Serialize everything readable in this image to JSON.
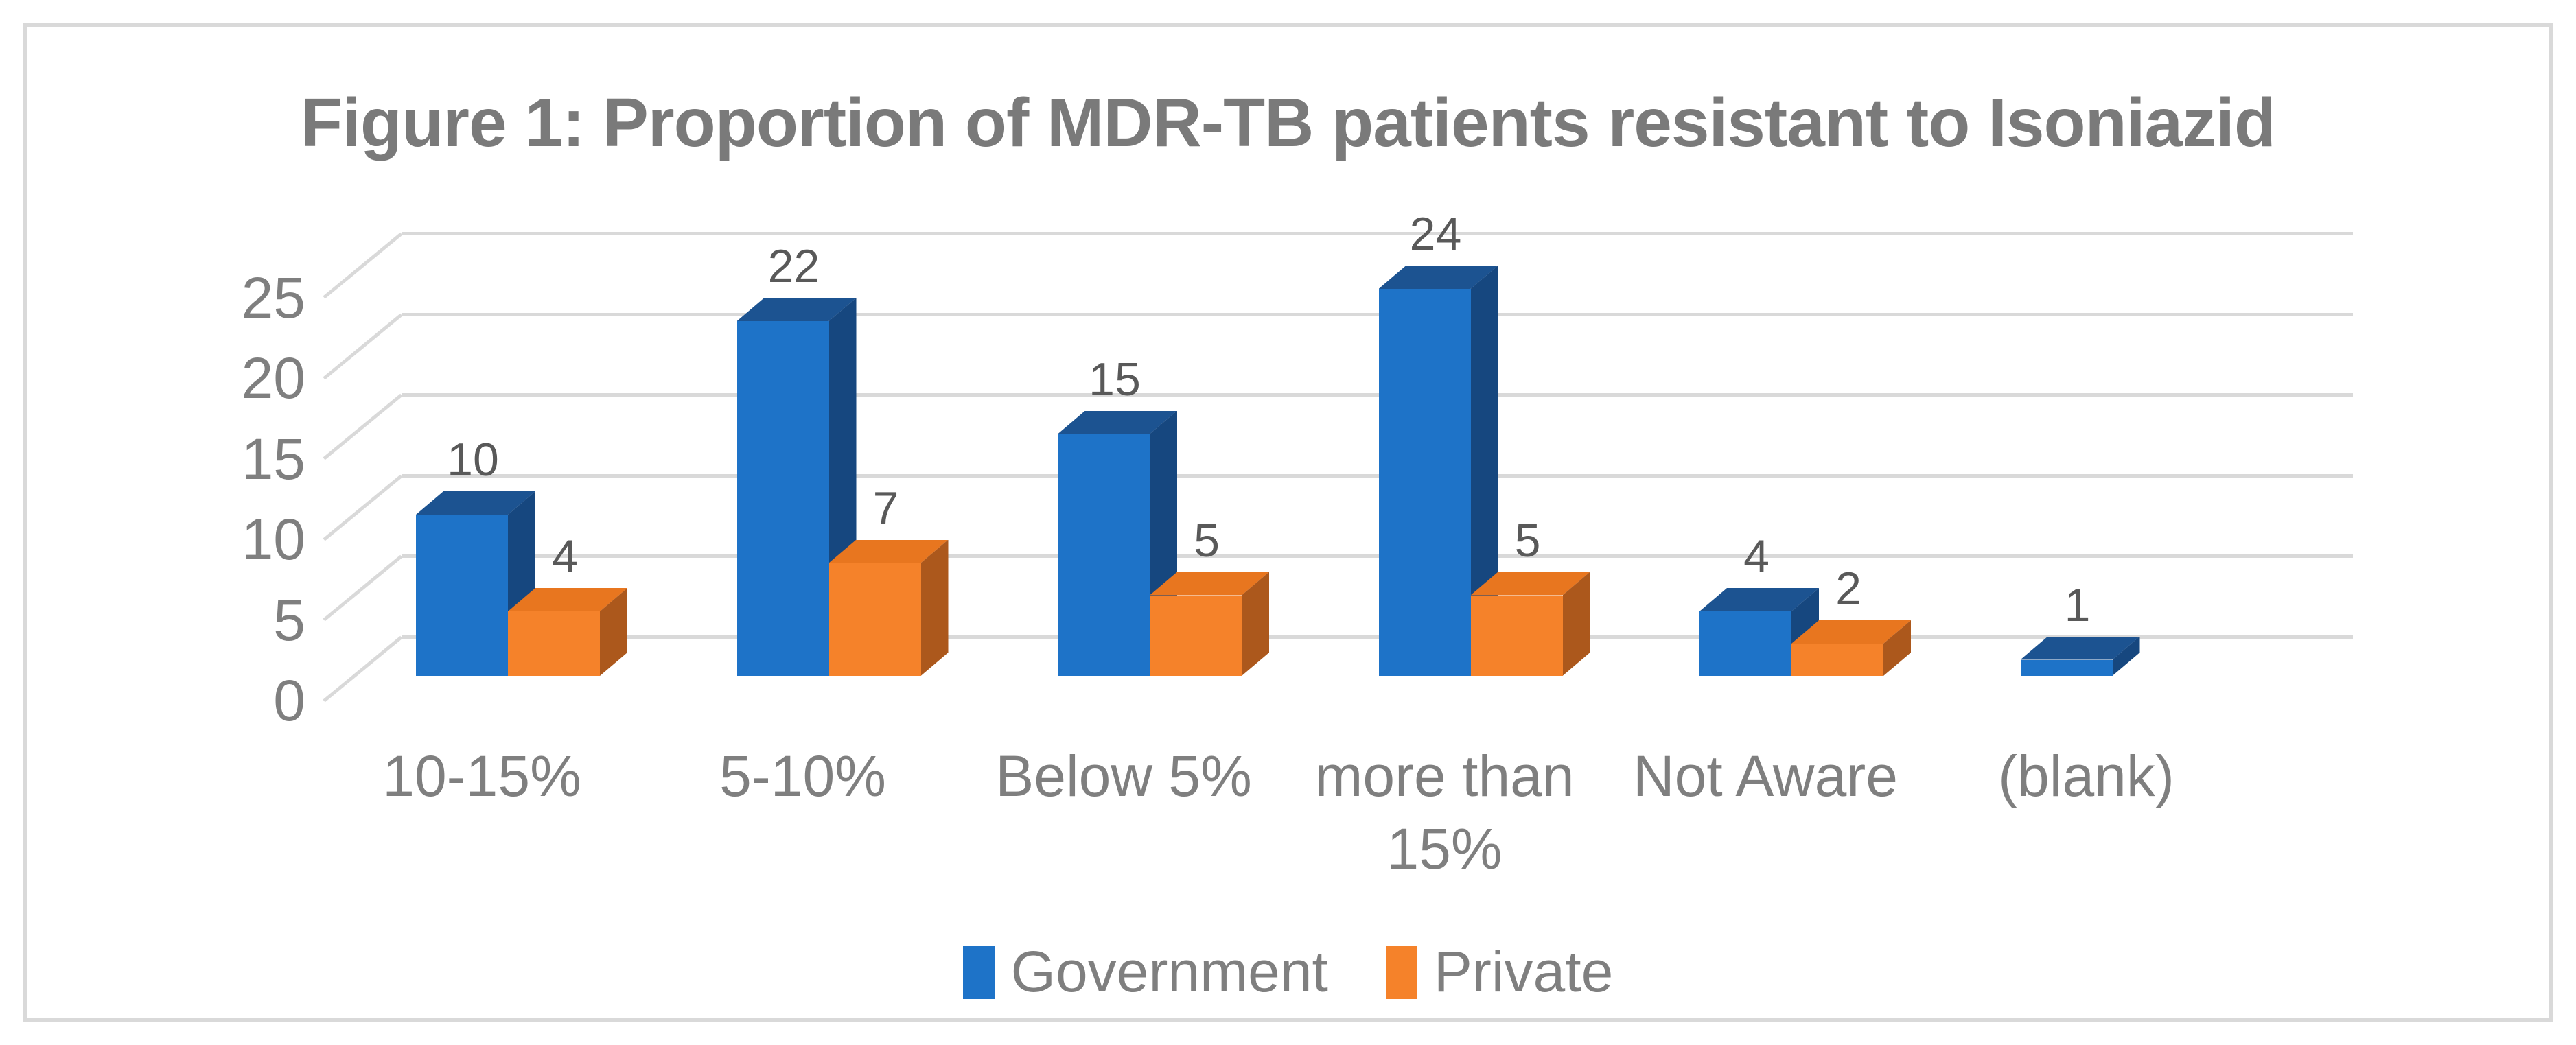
{
  "chart_data": {
    "type": "bar",
    "subtype": "3d-clustered-column",
    "title": "Figure 1: Proportion of MDR-TB patients resistant to Isoniazid",
    "xlabel": "",
    "ylabel": "",
    "categories": [
      "10-15%",
      "5-10%",
      "Below 5%",
      "more than 15%",
      "Not Aware",
      "(blank)"
    ],
    "series": [
      {
        "name": "Government",
        "values": [
          10,
          22,
          15,
          24,
          4,
          1
        ],
        "color": "#1E73C8",
        "color_top": "#1C5391",
        "color_side": "#16477F"
      },
      {
        "name": "Private",
        "values": [
          4,
          7,
          5,
          5,
          2,
          null
        ],
        "color": "#F5822A",
        "color_top": "#E8761F",
        "color_side": "#AC581C"
      }
    ],
    "data_labels": {
      "Government": [
        10,
        22,
        15,
        24,
        4,
        1
      ],
      "Private": [
        4,
        7,
        5,
        5,
        2,
        null
      ]
    },
    "y_axis": {
      "ticks": [
        0,
        5,
        10,
        15,
        20,
        25
      ],
      "min": 0,
      "max": 25
    },
    "ylim": [
      0,
      25
    ],
    "grid": true,
    "legend_position": "bottom",
    "legend_entries": [
      "Government",
      "Private"
    ]
  },
  "colors": {
    "title_text": "#7A7A7A",
    "axis_text": "#7F7F7F",
    "data_label_text": "#595959",
    "gridline": "#D9D9D9",
    "frame_border": "#D9D9D9",
    "background": "#FFFFFF",
    "series_government": "#1E73C8",
    "series_private": "#F5822A"
  }
}
